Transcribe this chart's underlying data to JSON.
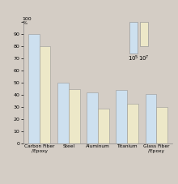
{
  "categories": [
    "Carbon Fiber\n/Epoxy",
    "Steel",
    "Aluminum",
    "Titanium",
    "Glass Fiber\n/Epoxy"
  ],
  "values_10_5": [
    90,
    50,
    42,
    44,
    41
  ],
  "values_10_7": [
    80,
    45,
    29,
    33,
    30
  ],
  "bar_color_10_5": "#cde0ef",
  "bar_color_10_7": "#ede8c8",
  "background_color": "#d4cdc5",
  "ylim": [
    0,
    100
  ],
  "yticks": [
    0,
    10,
    20,
    30,
    40,
    50,
    60,
    70,
    80,
    90,
    100
  ],
  "bar_width": 0.38,
  "bar_edge_color": "#999999",
  "legend_label1": "10",
  "legend_sup1": "5",
  "legend_label2": "10",
  "legend_sup2": "7"
}
